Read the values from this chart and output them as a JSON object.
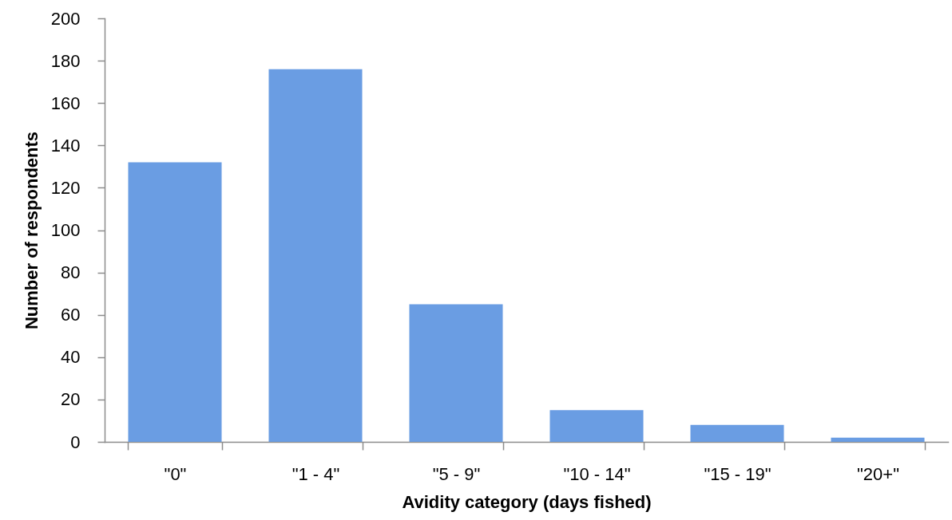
{
  "chart_data": {
    "type": "bar",
    "xlabel": "Avidity category (days fished)",
    "ylabel": "Number of respondents",
    "categories": [
      "\"0\"",
      "\"1 - 4\"",
      "\"5 - 9\"",
      "\"10 - 14\"",
      "\"15 - 19\"",
      "\"20+\""
    ],
    "series": [
      {
        "color": "#6a9de3",
        "values": [
          132,
          176,
          65,
          15,
          8,
          2
        ]
      }
    ],
    "ylim": [
      0,
      200
    ],
    "yticks": [
      0,
      20,
      40,
      60,
      80,
      100,
      120,
      140,
      160,
      180,
      200
    ]
  }
}
